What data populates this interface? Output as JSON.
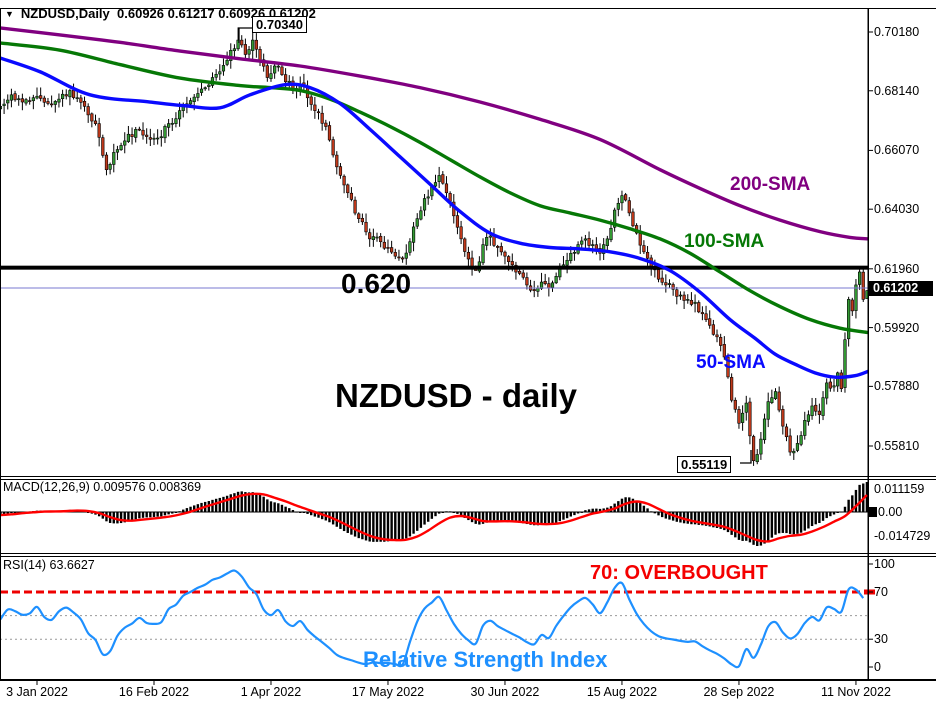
{
  "window": {
    "symbol_header": "NZDUSD,Daily",
    "ohlc_header": "0.60926 0.61217 0.60926 0.61202",
    "dropdown_icon": "▼"
  },
  "chart_data": [
    {
      "type": "candlestick",
      "pane": "price",
      "title": "NZDUSD - daily",
      "ylim": [
        0.5477,
        0.7101
      ],
      "grid": false,
      "yticks": [
        {
          "v": 0.7018,
          "label": "0.70180"
        },
        {
          "v": 0.6814,
          "label": "0.68140"
        },
        {
          "v": 0.6607,
          "label": "0.66070"
        },
        {
          "v": 0.6403,
          "label": "0.64030"
        },
        {
          "v": 0.6196,
          "label": "0.61960"
        },
        {
          "v": 0.5992,
          "label": "0.59920"
        },
        {
          "v": 0.5788,
          "label": "0.57880"
        },
        {
          "v": 0.5581,
          "label": "0.55810"
        }
      ],
      "current_price": {
        "value": 0.61202,
        "label": "0.61202",
        "line_color": "#7a7ad2"
      },
      "hline": {
        "value": 0.62,
        "label": "0.620",
        "color": "#000000"
      },
      "high_annotation": {
        "label": "0.70340",
        "value": 0.7034,
        "day": 55
      },
      "low_annotation": {
        "label": "0.55119",
        "value": 0.55119,
        "day": 196
      },
      "xticks": [
        {
          "day": 0,
          "label": "3 Jan 2022"
        },
        {
          "day": 32,
          "label": "16 Feb 2022"
        },
        {
          "day": 64,
          "label": "1 Apr 2022"
        },
        {
          "day": 96,
          "label": "17 May 2022"
        },
        {
          "day": 128,
          "label": "30 Jun 2022"
        },
        {
          "day": 160,
          "label": "15 Aug 2022"
        },
        {
          "day": 192,
          "label": "28 Sep 2022"
        },
        {
          "day": 224,
          "label": "11 Nov 2022"
        }
      ],
      "colors": {
        "up": "#339933",
        "down": "#c0391b",
        "wick": "#000000"
      },
      "close_anchors": [
        [
          -45,
          0.6825
        ],
        [
          -38,
          0.6785
        ],
        [
          -30,
          0.675
        ],
        [
          -24,
          0.6805
        ],
        [
          -18,
          0.6745
        ],
        [
          -14,
          0.673
        ],
        [
          -10,
          0.676
        ],
        [
          -7,
          0.68
        ],
        [
          -4,
          0.6775
        ],
        [
          -1,
          0.679
        ],
        [
          0,
          0.6795
        ],
        [
          3,
          0.677
        ],
        [
          6,
          0.6785
        ],
        [
          9,
          0.6815
        ],
        [
          13,
          0.676
        ],
        [
          16,
          0.67
        ],
        [
          19,
          0.654
        ],
        [
          21,
          0.66
        ],
        [
          24,
          0.664
        ],
        [
          27,
          0.668
        ],
        [
          30,
          0.6655
        ],
        [
          33,
          0.665
        ],
        [
          36,
          0.67
        ],
        [
          39,
          0.6745
        ],
        [
          42,
          0.678
        ],
        [
          45,
          0.682
        ],
        [
          48,
          0.686
        ],
        [
          50,
          0.688
        ],
        [
          52,
          0.692
        ],
        [
          54,
          0.696
        ],
        [
          55,
          0.699
        ],
        [
          57,
          0.694
        ],
        [
          59,
          0.699
        ],
        [
          61,
          0.692
        ],
        [
          63,
          0.686
        ],
        [
          65,
          0.69
        ],
        [
          67,
          0.687
        ],
        [
          70,
          0.682
        ],
        [
          73,
          0.683
        ],
        [
          76,
          0.6745
        ],
        [
          79,
          0.669
        ],
        [
          82,
          0.655
        ],
        [
          85,
          0.646
        ],
        [
          88,
          0.637
        ],
        [
          91,
          0.63
        ],
        [
          94,
          0.629
        ],
        [
          96,
          0.627
        ],
        [
          98,
          0.624
        ],
        [
          100,
          0.623
        ],
        [
          102,
          0.629
        ],
        [
          104,
          0.637
        ],
        [
          106,
          0.644
        ],
        [
          108,
          0.648
        ],
        [
          110,
          0.652
        ],
        [
          112,
          0.646
        ],
        [
          114,
          0.638
        ],
        [
          116,
          0.63
        ],
        [
          118,
          0.623
        ],
        [
          120,
          0.619
        ],
        [
          122,
          0.628
        ],
        [
          124,
          0.631
        ],
        [
          126,
          0.627
        ],
        [
          128,
          0.624
        ],
        [
          130,
          0.621
        ],
        [
          132,
          0.618
        ],
        [
          134,
          0.614
        ],
        [
          136,
          0.612
        ],
        [
          138,
          0.615
        ],
        [
          140,
          0.613
        ],
        [
          142,
          0.617
        ],
        [
          144,
          0.621
        ],
        [
          146,
          0.625
        ],
        [
          148,
          0.628
        ],
        [
          150,
          0.63
        ],
        [
          152,
          0.628
        ],
        [
          154,
          0.625
        ],
        [
          156,
          0.63
        ],
        [
          158,
          0.64
        ],
        [
          160,
          0.645
        ],
        [
          162,
          0.639
        ],
        [
          164,
          0.632
        ],
        [
          166,
          0.6255
        ],
        [
          168,
          0.62
        ],
        [
          170,
          0.616
        ],
        [
          172,
          0.614
        ],
        [
          174,
          0.6125
        ],
        [
          176,
          0.6105
        ],
        [
          178,
          0.609
        ],
        [
          180,
          0.608
        ],
        [
          182,
          0.604
        ],
        [
          184,
          0.6
        ],
        [
          186,
          0.596
        ],
        [
          188,
          0.589
        ],
        [
          190,
          0.574
        ],
        [
          192,
          0.566
        ],
        [
          194,
          0.573
        ],
        [
          196,
          0.553
        ],
        [
          198,
          0.5605
        ],
        [
          200,
          0.5735
        ],
        [
          202,
          0.577
        ],
        [
          204,
          0.565
        ],
        [
          206,
          0.556
        ],
        [
          208,
          0.559
        ],
        [
          210,
          0.567
        ],
        [
          212,
          0.572
        ],
        [
          214,
          0.569
        ],
        [
          216,
          0.58
        ],
        [
          218,
          0.579
        ],
        [
          219,
          0.5835
        ],
        [
          220,
          0.578
        ],
        [
          221,
          0.595
        ],
        [
          222,
          0.609
        ],
        [
          223,
          0.605
        ],
        [
          224,
          0.614
        ],
        [
          225,
          0.6185
        ],
        [
          226,
          0.609
        ],
        [
          227,
          0.61202
        ]
      ],
      "wick_overrides": {
        "55": {
          "high": 0.7034
        },
        "100": {
          "low": 0.6217
        },
        "120": {
          "low": 0.6197
        },
        "140": {
          "low": 0.61
        },
        "196": {
          "low": 0.55119
        },
        "225": {
          "high": 0.6196
        },
        "227": {
          "open": 0.60926,
          "high": 0.61217,
          "low": 0.60926,
          "close": 0.61202
        }
      },
      "series": [
        {
          "name": "200-SMA",
          "color": "#800080",
          "points": [
            [
              0,
              0.7032
            ],
            [
              60,
              0.7008
            ],
            [
              120,
              0.6982
            ],
            [
              180,
              0.6952
            ],
            [
              240,
              0.6925
            ],
            [
              300,
              0.69
            ],
            [
              360,
              0.6865
            ],
            [
              420,
              0.6825
            ],
            [
              480,
              0.6775
            ],
            [
              540,
              0.6715
            ],
            [
              600,
              0.6645
            ],
            [
              660,
              0.654
            ],
            [
              700,
              0.6475
            ],
            [
              740,
              0.6415
            ],
            [
              780,
              0.6365
            ],
            [
              820,
              0.6325
            ],
            [
              850,
              0.6305
            ],
            [
              868,
              0.63
            ]
          ]
        },
        {
          "name": "100-SMA",
          "color": "#067806",
          "points": [
            [
              0,
              0.698
            ],
            [
              60,
              0.6955
            ],
            [
              120,
              0.6905
            ],
            [
              180,
              0.6858
            ],
            [
              240,
              0.6832
            ],
            [
              270,
              0.6825
            ],
            [
              300,
              0.6815
            ],
            [
              330,
              0.6785
            ],
            [
              360,
              0.674
            ],
            [
              390,
              0.669
            ],
            [
              420,
              0.6635
            ],
            [
              450,
              0.6575
            ],
            [
              480,
              0.6515
            ],
            [
              510,
              0.646
            ],
            [
              540,
              0.6415
            ],
            [
              570,
              0.639
            ],
            [
              600,
              0.6365
            ],
            [
              630,
              0.6335
            ],
            [
              660,
              0.63
            ],
            [
              690,
              0.625
            ],
            [
              720,
              0.6185
            ],
            [
              750,
              0.612
            ],
            [
              780,
              0.6065
            ],
            [
              810,
              0.602
            ],
            [
              840,
              0.599
            ],
            [
              868,
              0.5975
            ]
          ]
        },
        {
          "name": "50-SMA",
          "color": "#0a0aff",
          "points": [
            [
              0,
              0.6928
            ],
            [
              40,
              0.688
            ],
            [
              90,
              0.68
            ],
            [
              150,
              0.6775
            ],
            [
              185,
              0.6762
            ],
            [
              220,
              0.6755
            ],
            [
              250,
              0.68
            ],
            [
              285,
              0.6835
            ],
            [
              310,
              0.6825
            ],
            [
              340,
              0.677
            ],
            [
              370,
              0.668
            ],
            [
              400,
              0.6585
            ],
            [
              430,
              0.649
            ],
            [
              460,
              0.6395
            ],
            [
              490,
              0.632
            ],
            [
              520,
              0.6285
            ],
            [
              550,
              0.627
            ],
            [
              580,
              0.6265
            ],
            [
              610,
              0.6255
            ],
            [
              640,
              0.6232
            ],
            [
              670,
              0.619
            ],
            [
              700,
              0.6115
            ],
            [
              730,
              0.602
            ],
            [
              755,
              0.5955
            ],
            [
              775,
              0.59
            ],
            [
              795,
              0.5865
            ],
            [
              815,
              0.5835
            ],
            [
              835,
              0.582
            ],
            [
              855,
              0.5825
            ],
            [
              868,
              0.584
            ]
          ]
        }
      ]
    },
    {
      "type": "bar",
      "pane": "macd",
      "header": "MACD(12,26,9) 0.009576 0.008369",
      "params": [
        12,
        26,
        9
      ],
      "macd_value": 0.009576,
      "signal_value": 0.008369,
      "yticks": [
        {
          "v": 0.011159,
          "label": "0.011159"
        },
        {
          "v": 0.0,
          "label": "0.00"
        },
        {
          "v": -0.014729,
          "label": "-0.014729"
        }
      ],
      "colors": {
        "histogram": "#000000",
        "signal": "#ff0000"
      }
    },
    {
      "type": "line",
      "pane": "rsi",
      "header": "RSI(14) 63.6627",
      "period": 14,
      "value": 63.6627,
      "annotation": "70: OVERBOUGHT",
      "title": "Relative Strength Index",
      "levels": [
        {
          "v": 70,
          "style": "dashed",
          "color": "#ee0000"
        },
        {
          "v": 50,
          "style": "dotted",
          "color": "#999999"
        },
        {
          "v": 30,
          "style": "dotted",
          "color": "#999999"
        }
      ],
      "yticks": [
        {
          "v": 100,
          "label": "100"
        },
        {
          "v": 70,
          "label": "70"
        },
        {
          "v": 30,
          "label": "30"
        },
        {
          "v": 0,
          "label": "0"
        }
      ],
      "color": "#1e90ff"
    }
  ]
}
